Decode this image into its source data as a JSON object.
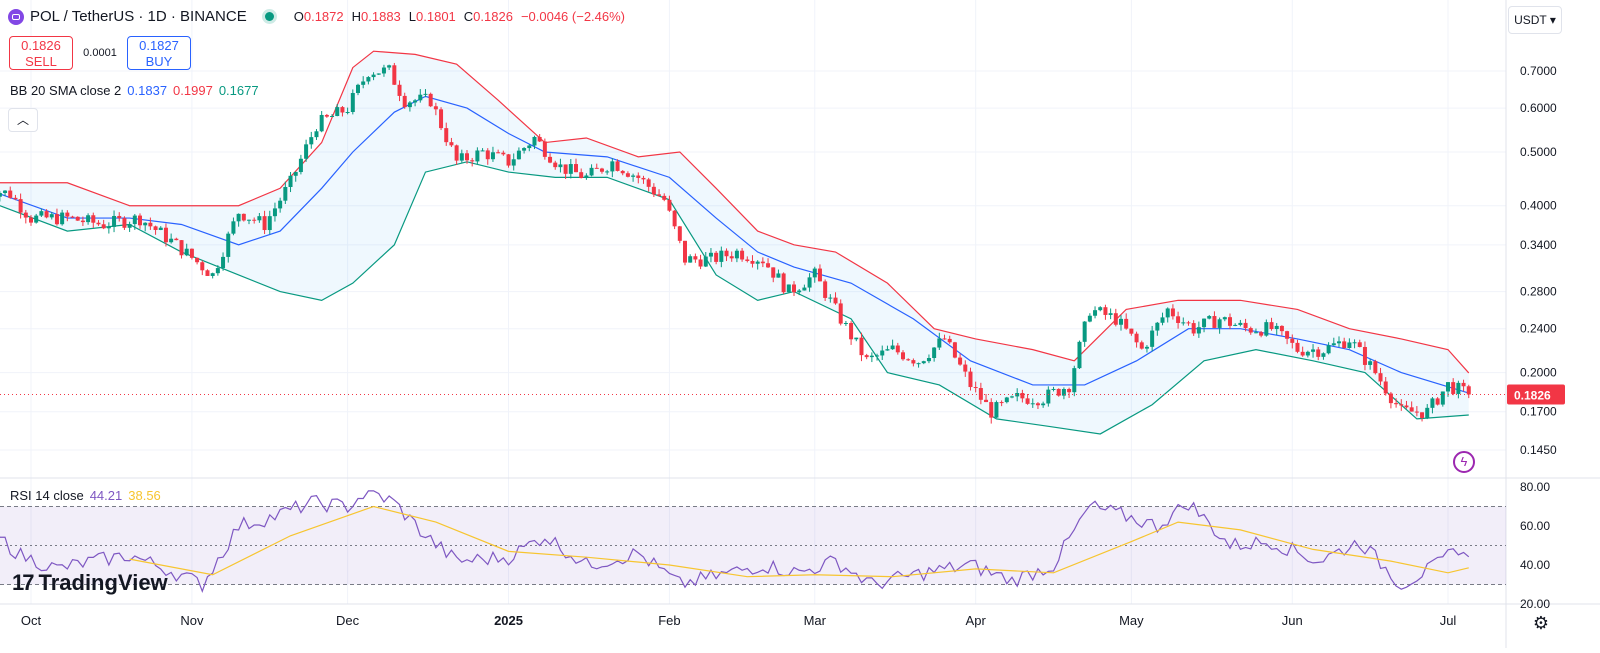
{
  "header": {
    "symbol": "POL / TetherUS · 1D · BINANCE",
    "icon": "polygon-logo-icon",
    "ohlc": {
      "o_label": "O",
      "o": "0.1872",
      "h_label": "H",
      "h": "0.1883",
      "l_label": "L",
      "l": "0.1801",
      "c_label": "C",
      "c": "0.1826",
      "change": "−0.0046 (−2.46%)"
    },
    "down_color": "#f23645",
    "up_color": "#089981"
  },
  "trade": {
    "sell_price": "0.1826",
    "sell_label": "SELL",
    "spread": "0.0001",
    "buy_price": "0.1827",
    "buy_label": "BUY"
  },
  "bb_legend": {
    "label": "BB 20 SMA close 2",
    "basis": "0.1837",
    "upper": "0.1997",
    "lower": "0.1677"
  },
  "rsi_legend": {
    "label": "RSI 14 close",
    "rsi": "44.21",
    "ma": "38.56"
  },
  "currency": "USDT ▾",
  "logo": {
    "mark": "17",
    "text": "TradingView"
  },
  "chart_data": {
    "type": "candlestick",
    "price_scale": "log",
    "ylim": [
      0.13,
      0.8
    ],
    "y_ticks": [
      "0.7000",
      "0.6000",
      "0.5000",
      "0.4000",
      "0.3400",
      "0.2800",
      "0.2400",
      "0.2000",
      "0.1700",
      "0.1450"
    ],
    "x_labels": [
      {
        "label": "Oct",
        "date": "2024-10-01"
      },
      {
        "label": "Nov",
        "date": "2024-11-01"
      },
      {
        "label": "Dec",
        "date": "2024-12-01"
      },
      {
        "label": "2025",
        "date": "2025-01-01",
        "bold": true
      },
      {
        "label": "Feb",
        "date": "2025-02-01"
      },
      {
        "label": "Mar",
        "date": "2025-03-01"
      },
      {
        "label": "Apr",
        "date": "2025-04-01"
      },
      {
        "label": "May",
        "date": "2025-05-01"
      },
      {
        "label": "Jun",
        "date": "2025-06-01"
      },
      {
        "label": "Jul",
        "date": "2025-07-01"
      }
    ],
    "last_price": "0.1826",
    "close_path": [
      [
        "2024-09-22",
        0.43
      ],
      [
        "2024-09-27",
        0.42
      ],
      [
        "2024-10-01",
        0.38
      ],
      [
        "2024-10-08",
        0.38
      ],
      [
        "2024-10-15",
        0.37
      ],
      [
        "2024-10-22",
        0.38
      ],
      [
        "2024-10-29",
        0.34
      ],
      [
        "2024-11-05",
        0.3
      ],
      [
        "2024-11-10",
        0.39
      ],
      [
        "2024-11-15",
        0.37
      ],
      [
        "2024-11-20",
        0.44
      ],
      [
        "2024-11-25",
        0.56
      ],
      [
        "2024-12-01",
        0.6
      ],
      [
        "2024-12-05",
        0.7
      ],
      [
        "2024-12-09",
        0.7
      ],
      [
        "2024-12-12",
        0.62
      ],
      [
        "2024-12-17",
        0.62
      ],
      [
        "2024-12-22",
        0.48
      ],
      [
        "2024-12-27",
        0.5
      ],
      [
        "2025-01-01",
        0.48
      ],
      [
        "2025-01-06",
        0.53
      ],
      [
        "2025-01-11",
        0.47
      ],
      [
        "2025-01-16",
        0.45
      ],
      [
        "2025-01-21",
        0.48
      ],
      [
        "2025-01-26",
        0.45
      ],
      [
        "2025-01-31",
        0.41
      ],
      [
        "2025-02-04",
        0.32
      ],
      [
        "2025-02-09",
        0.32
      ],
      [
        "2025-02-14",
        0.33
      ],
      [
        "2025-02-19",
        0.32
      ],
      [
        "2025-02-24",
        0.28
      ],
      [
        "2025-03-01",
        0.3
      ],
      [
        "2025-03-06",
        0.25
      ],
      [
        "2025-03-11",
        0.21
      ],
      [
        "2025-03-16",
        0.22
      ],
      [
        "2025-03-21",
        0.21
      ],
      [
        "2025-03-26",
        0.23
      ],
      [
        "2025-03-31",
        0.19
      ],
      [
        "2025-04-04",
        0.17
      ],
      [
        "2025-04-09",
        0.18
      ],
      [
        "2025-04-14",
        0.18
      ],
      [
        "2025-04-19",
        0.19
      ],
      [
        "2025-04-23",
        0.26
      ],
      [
        "2025-04-28",
        0.25
      ],
      [
        "2025-05-03",
        0.22
      ],
      [
        "2025-05-08",
        0.26
      ],
      [
        "2025-05-13",
        0.24
      ],
      [
        "2025-05-18",
        0.25
      ],
      [
        "2025-05-23",
        0.24
      ],
      [
        "2025-05-28",
        0.24
      ],
      [
        "2025-06-02",
        0.22
      ],
      [
        "2025-06-07",
        0.22
      ],
      [
        "2025-06-12",
        0.23
      ],
      [
        "2025-06-17",
        0.2
      ],
      [
        "2025-06-22",
        0.17
      ],
      [
        "2025-06-27",
        0.17
      ],
      [
        "2025-07-01",
        0.19
      ],
      [
        "2025-07-05",
        0.1826
      ]
    ],
    "bollinger": {
      "period": 20,
      "upper": [
        [
          "2024-09-25",
          0.44
        ],
        [
          "2024-10-08",
          0.44
        ],
        [
          "2024-10-20",
          0.4
        ],
        [
          "2024-10-30",
          0.4
        ],
        [
          "2024-11-10",
          0.4
        ],
        [
          "2024-11-18",
          0.43
        ],
        [
          "2024-11-26",
          0.52
        ],
        [
          "2024-12-02",
          0.71
        ],
        [
          "2024-12-06",
          0.76
        ],
        [
          "2024-12-14",
          0.75
        ],
        [
          "2024-12-22",
          0.72
        ],
        [
          "2024-12-30",
          0.62
        ],
        [
          "2025-01-08",
          0.52
        ],
        [
          "2025-01-16",
          0.53
        ],
        [
          "2025-01-26",
          0.49
        ],
        [
          "2025-02-03",
          0.5
        ],
        [
          "2025-02-10",
          0.43
        ],
        [
          "2025-02-18",
          0.36
        ],
        [
          "2025-02-25",
          0.34
        ],
        [
          "2025-03-05",
          0.33
        ],
        [
          "2025-03-15",
          0.29
        ],
        [
          "2025-03-24",
          0.24
        ],
        [
          "2025-04-01",
          0.23
        ],
        [
          "2025-04-12",
          0.22
        ],
        [
          "2025-04-20",
          0.21
        ],
        [
          "2025-04-30",
          0.26
        ],
        [
          "2025-05-10",
          0.27
        ],
        [
          "2025-05-22",
          0.27
        ],
        [
          "2025-06-02",
          0.26
        ],
        [
          "2025-06-12",
          0.24
        ],
        [
          "2025-06-22",
          0.23
        ],
        [
          "2025-07-01",
          0.22
        ],
        [
          "2025-07-05",
          0.1997
        ]
      ],
      "basis": [
        [
          "2024-09-25",
          0.42
        ],
        [
          "2024-10-08",
          0.38
        ],
        [
          "2024-10-20",
          0.38
        ],
        [
          "2024-10-30",
          0.37
        ],
        [
          "2024-11-10",
          0.34
        ],
        [
          "2024-11-18",
          0.36
        ],
        [
          "2024-11-26",
          0.43
        ],
        [
          "2024-12-02",
          0.5
        ],
        [
          "2024-12-10",
          0.59
        ],
        [
          "2024-12-16",
          0.63
        ],
        [
          "2024-12-24",
          0.6
        ],
        [
          "2025-01-01",
          0.54
        ],
        [
          "2025-01-08",
          0.5
        ],
        [
          "2025-01-20",
          0.49
        ],
        [
          "2025-02-01",
          0.45
        ],
        [
          "2025-02-10",
          0.38
        ],
        [
          "2025-02-18",
          0.33
        ],
        [
          "2025-02-25",
          0.31
        ],
        [
          "2025-03-08",
          0.29
        ],
        [
          "2025-03-20",
          0.25
        ],
        [
          "2025-03-31",
          0.21
        ],
        [
          "2025-04-12",
          0.19
        ],
        [
          "2025-04-22",
          0.19
        ],
        [
          "2025-05-02",
          0.21
        ],
        [
          "2025-05-12",
          0.24
        ],
        [
          "2025-05-22",
          0.24
        ],
        [
          "2025-06-02",
          0.23
        ],
        [
          "2025-06-12",
          0.22
        ],
        [
          "2025-06-22",
          0.2
        ],
        [
          "2025-07-05",
          0.1837
        ]
      ],
      "lower": [
        [
          "2024-09-25",
          0.4
        ],
        [
          "2024-10-08",
          0.36
        ],
        [
          "2024-10-20",
          0.37
        ],
        [
          "2024-10-30",
          0.33
        ],
        [
          "2024-11-10",
          0.3
        ],
        [
          "2024-11-18",
          0.28
        ],
        [
          "2024-11-26",
          0.27
        ],
        [
          "2024-12-02",
          0.29
        ],
        [
          "2024-12-10",
          0.34
        ],
        [
          "2024-12-16",
          0.46
        ],
        [
          "2024-12-24",
          0.48
        ],
        [
          "2025-01-01",
          0.46
        ],
        [
          "2025-01-10",
          0.45
        ],
        [
          "2025-01-20",
          0.45
        ],
        [
          "2025-02-01",
          0.41
        ],
        [
          "2025-02-10",
          0.3
        ],
        [
          "2025-02-18",
          0.27
        ],
        [
          "2025-02-25",
          0.28
        ],
        [
          "2025-03-08",
          0.25
        ],
        [
          "2025-03-15",
          0.2
        ],
        [
          "2025-03-25",
          0.19
        ],
        [
          "2025-04-05",
          0.165
        ],
        [
          "2025-04-15",
          0.16
        ],
        [
          "2025-04-25",
          0.155
        ],
        [
          "2025-05-05",
          0.175
        ],
        [
          "2025-05-15",
          0.21
        ],
        [
          "2025-05-25",
          0.22
        ],
        [
          "2025-06-05",
          0.21
        ],
        [
          "2025-06-15",
          0.2
        ],
        [
          "2025-06-25",
          0.165
        ],
        [
          "2025-07-05",
          0.1677
        ]
      ]
    },
    "rsi": {
      "period": 14,
      "ticks": [
        "80.00",
        "60.00",
        "40.00",
        "20.00"
      ],
      "levels": [
        70,
        50,
        30
      ],
      "ylim": [
        20,
        80
      ],
      "line": [
        [
          "2024-09-22",
          60
        ],
        [
          "2024-09-29",
          45
        ],
        [
          "2024-10-06",
          38
        ],
        [
          "2024-10-13",
          42
        ],
        [
          "2024-10-20",
          45
        ],
        [
          "2024-10-27",
          38
        ],
        [
          "2024-11-03",
          30
        ],
        [
          "2024-11-10",
          60
        ],
        [
          "2024-11-17",
          65
        ],
        [
          "2024-11-24",
          72
        ],
        [
          "2024-12-01",
          70
        ],
        [
          "2024-12-05",
          78
        ],
        [
          "2024-12-10",
          72
        ],
        [
          "2024-12-16",
          55
        ],
        [
          "2024-12-22",
          42
        ],
        [
          "2025-01-01",
          44
        ],
        [
          "2025-01-08",
          55
        ],
        [
          "2025-01-16",
          40
        ],
        [
          "2025-01-26",
          46
        ],
        [
          "2025-02-03",
          30
        ],
        [
          "2025-02-11",
          35
        ],
        [
          "2025-02-19",
          40
        ],
        [
          "2025-02-26",
          36
        ],
        [
          "2025-03-05",
          42
        ],
        [
          "2025-03-12",
          30
        ],
        [
          "2025-03-22",
          36
        ],
        [
          "2025-03-31",
          40
        ],
        [
          "2025-04-08",
          32
        ],
        [
          "2025-04-16",
          40
        ],
        [
          "2025-04-23",
          70
        ],
        [
          "2025-04-30",
          65
        ],
        [
          "2025-05-06",
          60
        ],
        [
          "2025-05-12",
          72
        ],
        [
          "2025-05-20",
          50
        ],
        [
          "2025-05-28",
          52
        ],
        [
          "2025-06-06",
          42
        ],
        [
          "2025-06-14",
          52
        ],
        [
          "2025-06-22",
          30
        ],
        [
          "2025-06-29",
          40
        ],
        [
          "2025-07-03",
          49
        ],
        [
          "2025-07-05",
          44.21
        ]
      ],
      "ma": [
        [
          "2024-10-20",
          43
        ],
        [
          "2024-11-05",
          35
        ],
        [
          "2024-11-20",
          55
        ],
        [
          "2024-12-06",
          70
        ],
        [
          "2024-12-18",
          62
        ],
        [
          "2025-01-01",
          47
        ],
        [
          "2025-01-16",
          44
        ],
        [
          "2025-02-01",
          40
        ],
        [
          "2025-02-16",
          34
        ],
        [
          "2025-03-01",
          35
        ],
        [
          "2025-03-16",
          34
        ],
        [
          "2025-04-01",
          38
        ],
        [
          "2025-04-16",
          36
        ],
        [
          "2025-05-01",
          52
        ],
        [
          "2025-05-10",
          62
        ],
        [
          "2025-05-22",
          58
        ],
        [
          "2025-06-05",
          48
        ],
        [
          "2025-06-20",
          42
        ],
        [
          "2025-07-01",
          36
        ],
        [
          "2025-07-05",
          38.56
        ]
      ]
    }
  }
}
